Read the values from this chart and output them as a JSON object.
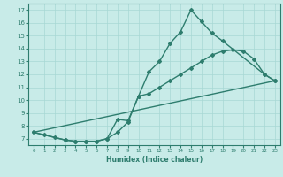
{
  "line1_x": [
    0,
    1,
    2,
    3,
    4,
    5,
    6,
    7,
    8,
    9,
    10,
    11,
    12,
    13,
    14,
    15,
    16,
    17,
    18,
    22,
    23
  ],
  "line1_y": [
    7.5,
    7.3,
    7.1,
    6.9,
    6.8,
    6.8,
    6.8,
    7.0,
    8.5,
    8.4,
    10.3,
    12.2,
    13.0,
    14.4,
    15.3,
    17.0,
    16.1,
    15.2,
    14.6,
    12.0,
    11.5
  ],
  "line2_x": [
    0,
    3,
    4,
    5,
    6,
    7,
    8,
    9,
    10,
    11,
    12,
    13,
    14,
    15,
    16,
    17,
    18,
    19,
    20,
    21,
    22,
    23
  ],
  "line2_y": [
    7.5,
    6.9,
    6.8,
    6.8,
    6.8,
    7.0,
    7.5,
    8.3,
    10.3,
    10.5,
    11.0,
    11.5,
    12.0,
    12.5,
    13.0,
    13.5,
    13.8,
    13.9,
    13.8,
    13.2,
    12.0,
    11.5
  ],
  "line3_x": [
    0,
    23
  ],
  "line3_y": [
    7.5,
    11.5
  ],
  "line_color": "#2e7d6e",
  "bg_color": "#c8ebe8",
  "grid_color": "#a8d8d4",
  "xlabel": "Humidex (Indice chaleur)",
  "xlim": [
    -0.5,
    23.5
  ],
  "ylim": [
    6.5,
    17.5
  ],
  "yticks": [
    7,
    8,
    9,
    10,
    11,
    12,
    13,
    14,
    15,
    16,
    17
  ],
  "xticks": [
    0,
    1,
    2,
    3,
    4,
    5,
    6,
    7,
    8,
    9,
    10,
    11,
    12,
    13,
    14,
    15,
    16,
    17,
    18,
    19,
    20,
    21,
    22,
    23
  ],
  "marker": "D",
  "markersize": 2,
  "linewidth": 1.0
}
